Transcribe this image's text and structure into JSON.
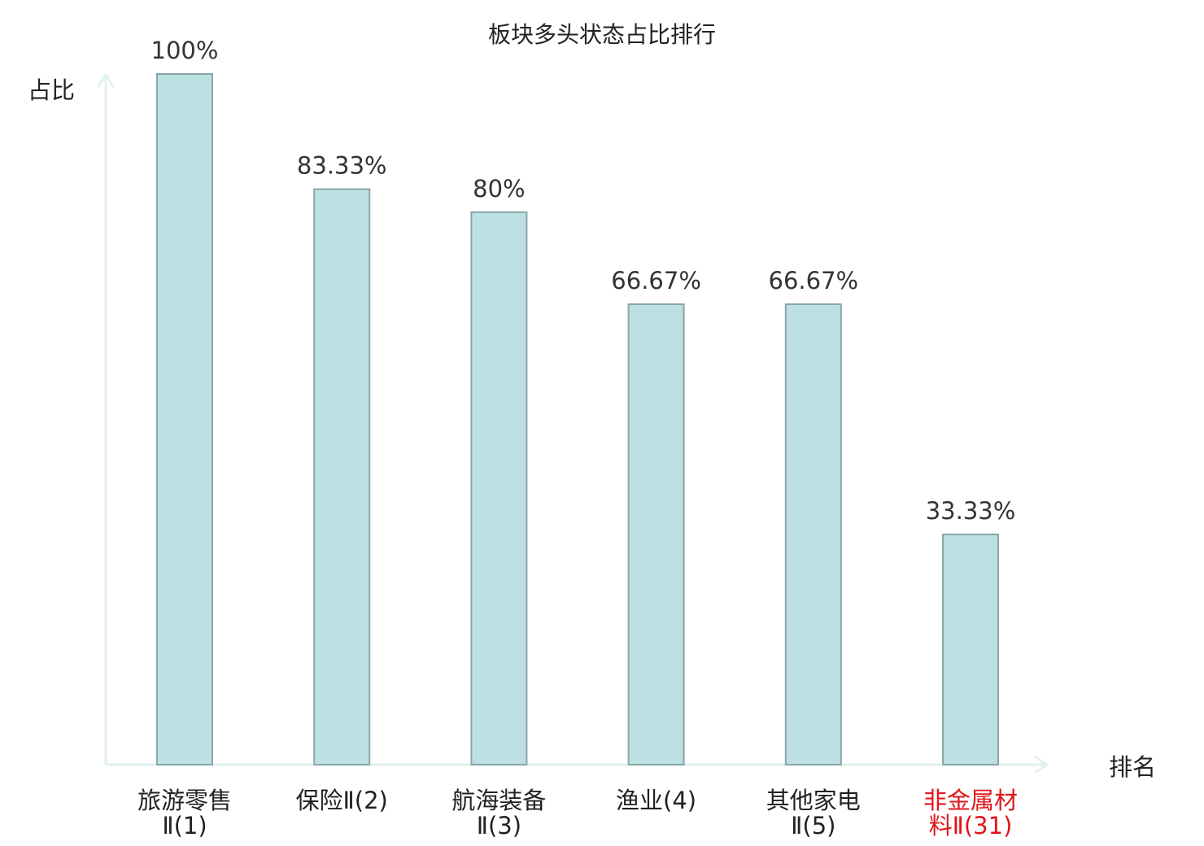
{
  "chart_data": {
    "type": "bar",
    "title": "板块多头状态占比排行",
    "ylabel": "占比",
    "xlabel": "排名",
    "ylim": [
      0,
      100
    ],
    "grid": false,
    "categories": [
      {
        "lines": [
          "旅游零售",
          "Ⅱ(1)"
        ],
        "highlight": false
      },
      {
        "lines": [
          "保险Ⅱ(2)"
        ],
        "highlight": false
      },
      {
        "lines": [
          "航海装备",
          "Ⅱ(3)"
        ],
        "highlight": false
      },
      {
        "lines": [
          "渔业(4)"
        ],
        "highlight": false
      },
      {
        "lines": [
          "其他家电",
          "Ⅱ(5)"
        ],
        "highlight": false
      },
      {
        "lines": [
          "非金属材",
          "料Ⅱ(31)"
        ],
        "highlight": true
      }
    ],
    "values": [
      100,
      83.33,
      80,
      66.67,
      66.67,
      33.33
    ],
    "value_labels": [
      "100%",
      "83.33%",
      "80%",
      "66.67%",
      "66.67%",
      "33.33%"
    ],
    "colors": {
      "bar_fill": "#bde0e3",
      "bar_stroke": "#8aa6aa",
      "axis": "#e0f2ef",
      "text": "#222222",
      "value_text": "#333333",
      "highlight_text": "#e0161b"
    }
  }
}
